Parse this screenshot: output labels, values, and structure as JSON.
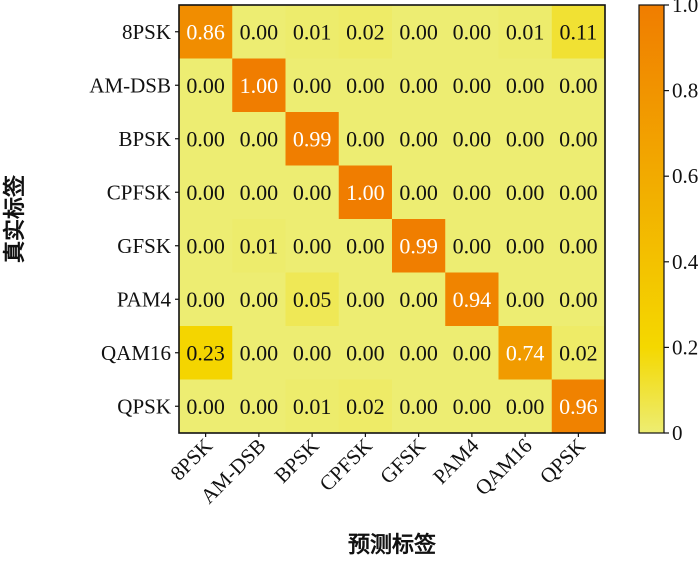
{
  "chart_data": {
    "type": "heatmap",
    "title": "",
    "xlabel": "预测标签",
    "ylabel": "真实标签",
    "x_categories": [
      "8PSK",
      "AM-DSB",
      "BPSK",
      "CPFSK",
      "GFSK",
      "PAM4",
      "QAM16",
      "QPSK"
    ],
    "y_categories": [
      "8PSK",
      "AM-DSB",
      "BPSK",
      "CPFSK",
      "GFSK",
      "PAM4",
      "QAM16",
      "QPSK"
    ],
    "values": [
      [
        0.86,
        0.0,
        0.01,
        0.02,
        0.0,
        0.0,
        0.01,
        0.11
      ],
      [
        0.0,
        1.0,
        0.0,
        0.0,
        0.0,
        0.0,
        0.0,
        0.0
      ],
      [
        0.0,
        0.0,
        0.99,
        0.0,
        0.0,
        0.0,
        0.0,
        0.0
      ],
      [
        0.0,
        0.0,
        0.0,
        1.0,
        0.0,
        0.0,
        0.0,
        0.0
      ],
      [
        0.0,
        0.01,
        0.0,
        0.0,
        0.99,
        0.0,
        0.0,
        0.0
      ],
      [
        0.0,
        0.0,
        0.05,
        0.0,
        0.0,
        0.94,
        0.0,
        0.0
      ],
      [
        0.23,
        0.0,
        0.0,
        0.0,
        0.0,
        0.0,
        0.74,
        0.02
      ],
      [
        0.0,
        0.0,
        0.01,
        0.02,
        0.0,
        0.0,
        0.0,
        0.96
      ]
    ],
    "colorbar": {
      "range": [
        0,
        1.0
      ],
      "ticks": [
        0,
        0.2,
        0.4,
        0.6,
        0.8,
        1.0
      ],
      "tick_labels": [
        "0",
        "0.2",
        "0.4",
        "0.6",
        "0.8",
        "1.0"
      ]
    },
    "colors": {
      "low": "#eded72",
      "mid": "#f4d800",
      "high": "#f07d00",
      "text_dark": "#111111",
      "text_light": "#ffffff"
    }
  }
}
